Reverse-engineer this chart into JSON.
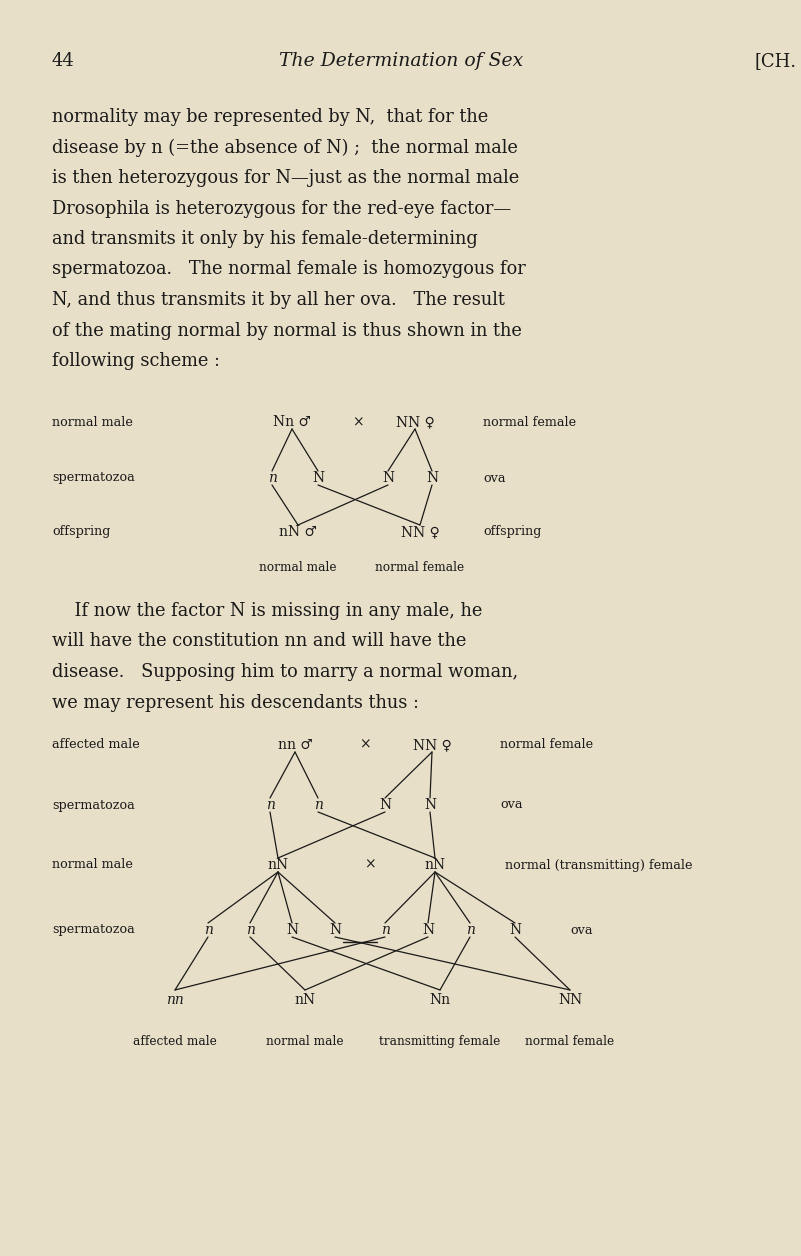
{
  "bg_color": "#e8dfc8",
  "text_color": "#1a1a1a",
  "page_number": "44",
  "header_title": "The Determination of Sex",
  "header_right": "[CH.",
  "body1": [
    "normality may be represented by N,  that for the",
    "disease by n (=the absence of N) ;  the normal male",
    "is then heterozygous for N—just as the normal male",
    "Drosophila is heterozygous for the red-eye factor—",
    "and transmits it only by his female-determining",
    "spermatozoa.   The normal female is homozygous for",
    "N, and thus transmits it by all her ova.   The result",
    "of the mating normal by normal is thus shown in the",
    "following scheme :"
  ],
  "body2": [
    "    If now the factor N is missing in any male, he",
    "will have the constitution nn and will have the",
    "disease.   Supposing him to marry a normal woman,",
    "we may represent his descendants thus :"
  ]
}
